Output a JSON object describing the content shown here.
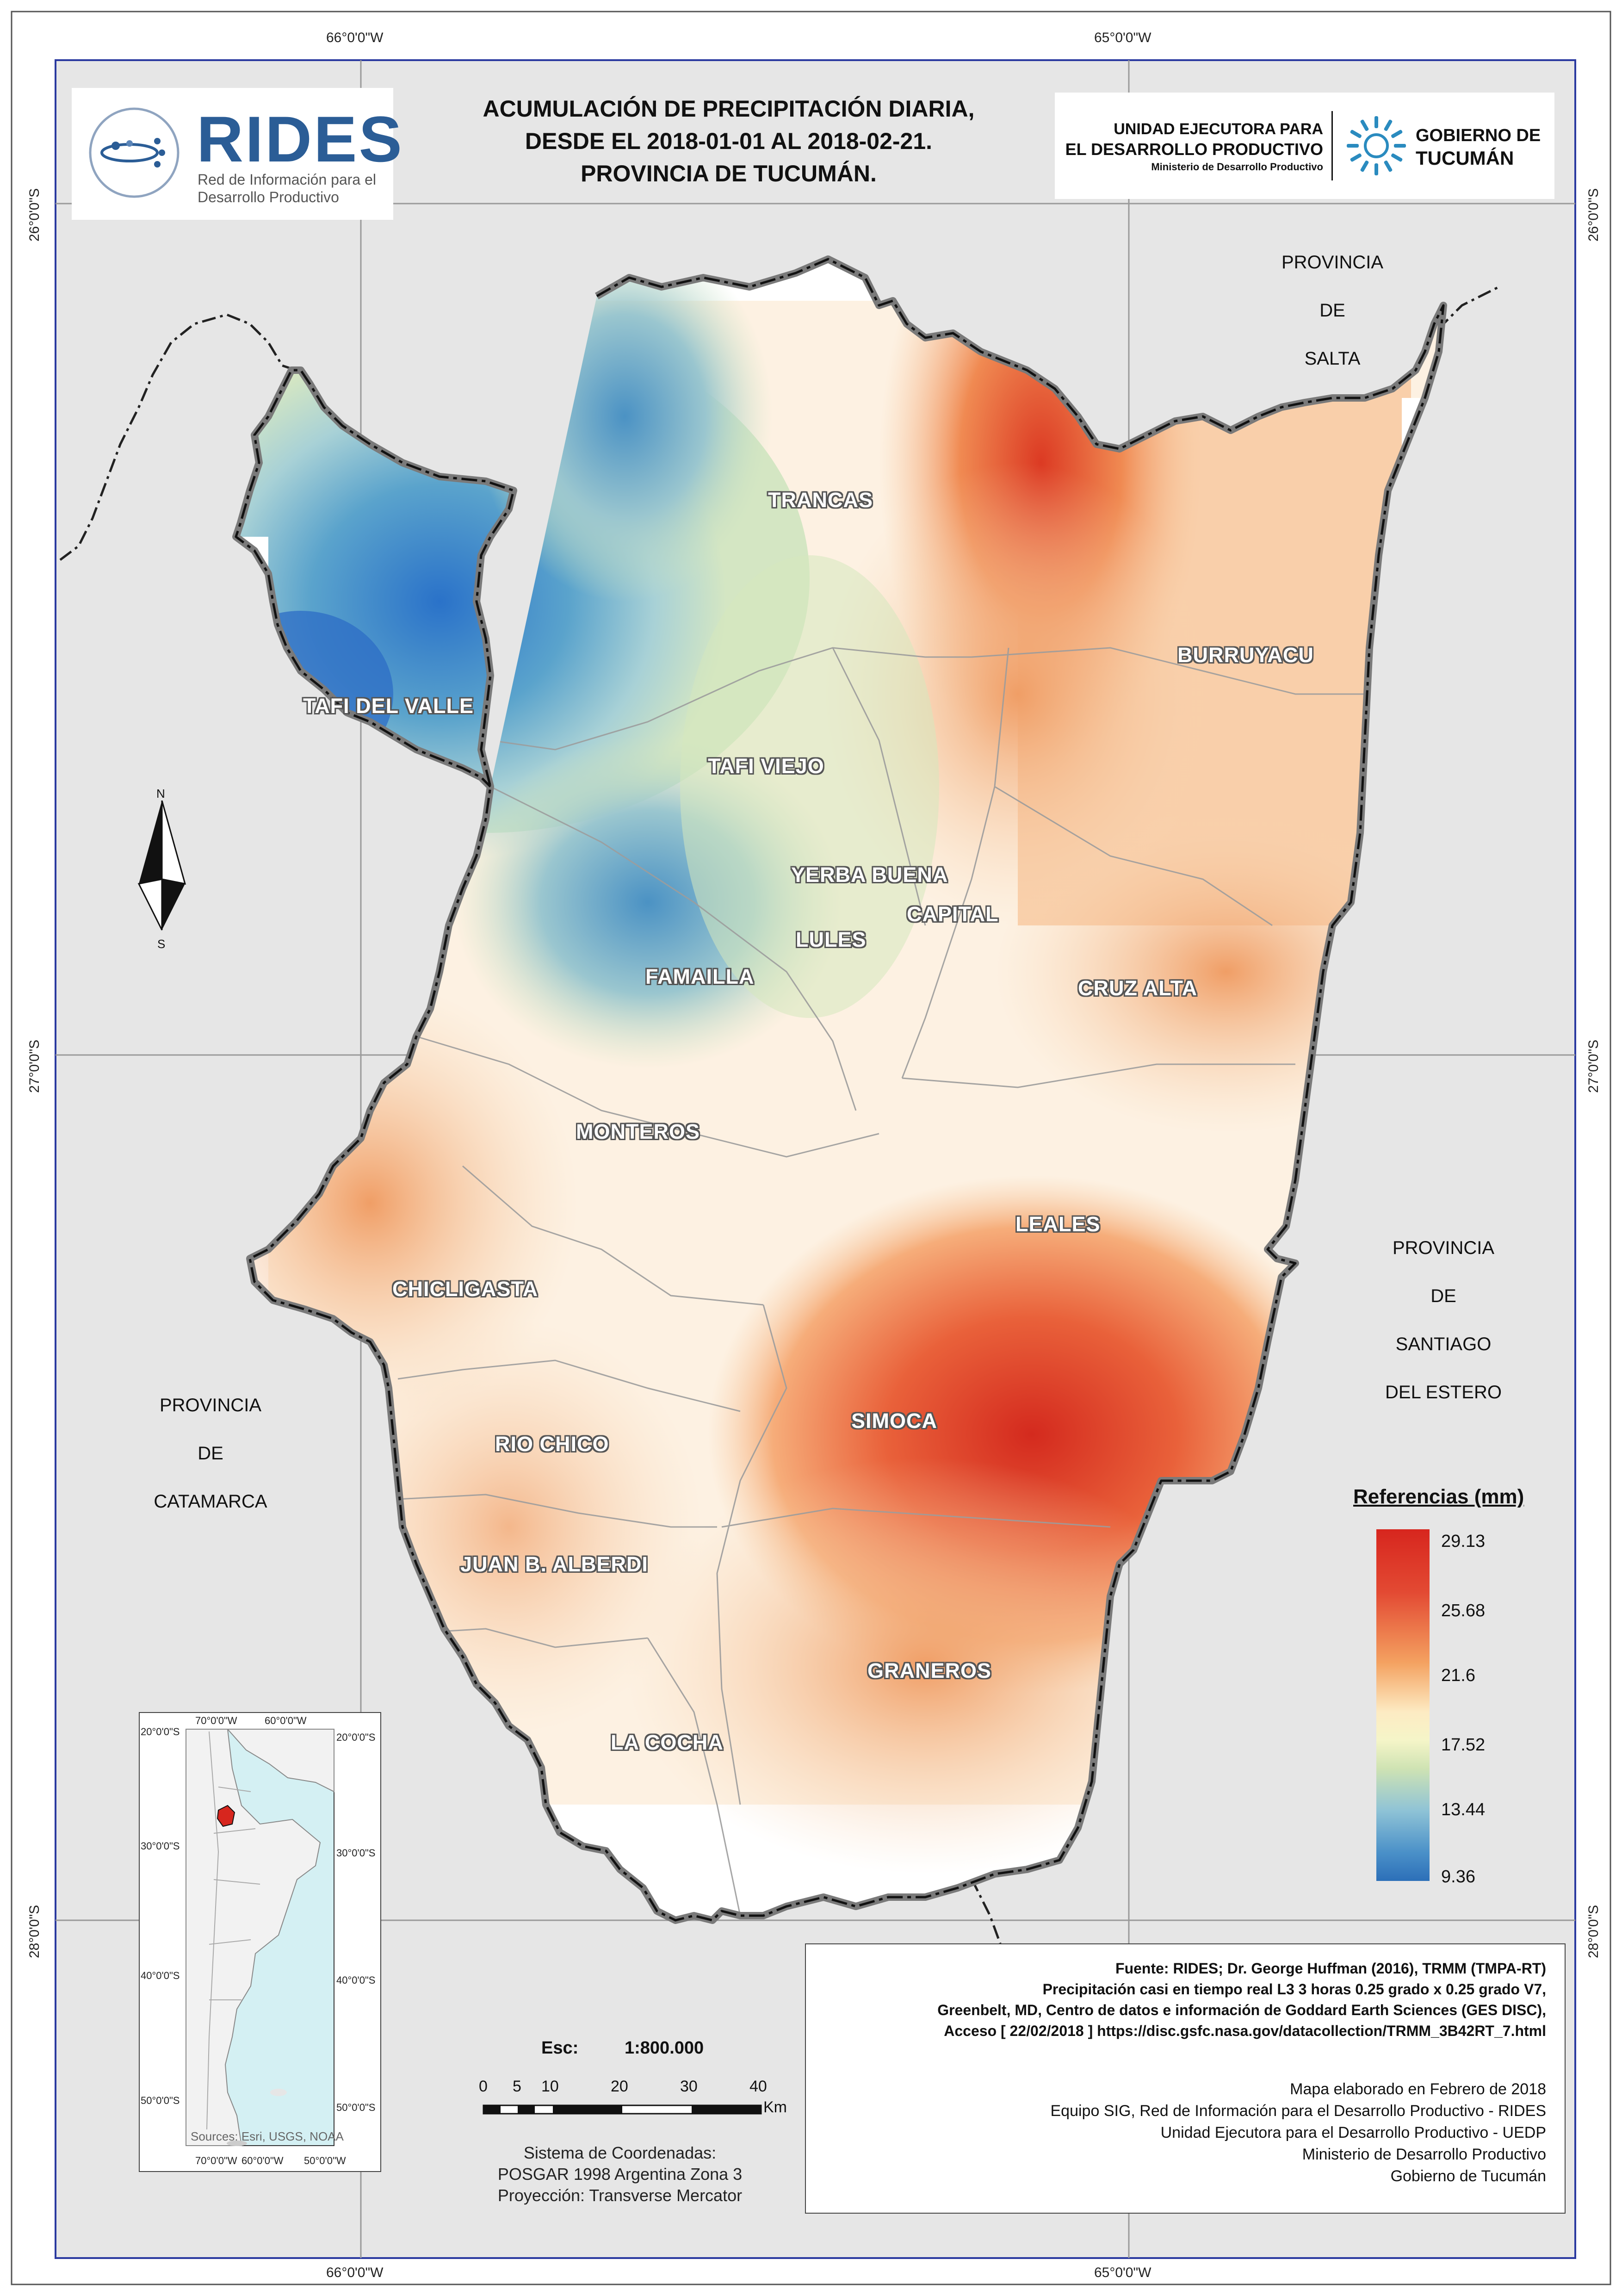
{
  "title": {
    "line1": "ACUMULACIÓN DE PRECIPITACIÓN DIARIA,",
    "line2": "DESDE EL 2018-01-01 AL 2018-02-21.",
    "line3": "PROVINCIA DE TUCUMÁN."
  },
  "logos": {
    "rides_name": "RIDES",
    "rides_sub1": "Red de Información para el",
    "rides_sub2": "Desarrollo Productivo",
    "uedp_line1": "UNIDAD EJECUTORA PARA",
    "uedp_line2": "EL DESARROLLO PRODUCTIVO",
    "uedp_line3": "Ministerio de Desarrollo Productivo",
    "gob_line1": "GOBIERNO DE",
    "gob_line2": "TUCUMÁN"
  },
  "coordinates": {
    "lon_w66": "66°0'0\"W",
    "lon_w65": "65°0'0\"W",
    "lat_s26": "26°0'0\"S",
    "lat_s27": "27°0'0\"S",
    "lat_s28": "28°0'0\"S"
  },
  "provinces": {
    "salta": [
      "PROVINCIA",
      "DE",
      "SALTA"
    ],
    "santiago": [
      "PROVINCIA",
      "DE",
      "SANTIAGO",
      "DEL ESTERO"
    ],
    "catamarca": [
      "PROVINCIA",
      "DE",
      "CATAMARCA"
    ]
  },
  "departments": {
    "trancas": "TRANCAS",
    "burruyacu": "BURRUYACU",
    "tafi_del_valle": "TAFI DEL VALLE",
    "tafi_viejo": "TAFI VIEJO",
    "yerba_buena": "YERBA BUENA",
    "capital": "CAPITAL",
    "lules": "LULES",
    "famailla": "FAMAILLA",
    "cruz_alta": "CRUZ ALTA",
    "monteros": "MONTEROS",
    "leales": "LEALES",
    "chicligasta": "CHICLIGASTA",
    "simoca": "SIMOCA",
    "rio_chico": "RIO CHICO",
    "juan_b_alberdi": "JUAN B. ALBERDI",
    "graneros": "GRANEROS",
    "la_cocha": "LA COCHA"
  },
  "north_arrow": {
    "n": "N",
    "s": "S"
  },
  "legend": {
    "title": "Referencias (mm)",
    "values": [
      "29.13",
      "25.68",
      "21.6",
      "17.52",
      "13.44",
      "9.36"
    ],
    "colors": {
      "high": "#d7261e",
      "mid": "#fdebc3",
      "low": "#2c6fb8"
    }
  },
  "scale": {
    "title": "Esc:",
    "ratio": "1:800.000",
    "labels": [
      "0",
      "5",
      "10",
      "20",
      "30",
      "40"
    ],
    "unit": "Km"
  },
  "coord_system": {
    "line1": "Sistema de Coordenadas:",
    "line2": "POSGAR 1998 Argentina Zona 3",
    "line3": "Proyección: Transverse Mercator"
  },
  "source": {
    "bold1": "Fuente: RIDES; Dr. George Huffman (2016), TRMM (TMPA-RT)",
    "bold2": "Precipitación casi en tiempo real L3 3 horas 0.25 grado x 0.25 grado V7,",
    "bold3": "Greenbelt, MD, Centro de datos e información de Goddard Earth Sciences (GES DISC),",
    "bold4": "Acceso [ 22/02/2018 ] https://disc.gsfc.nasa.gov/datacollection/TRMM_3B42RT_7.html",
    "n1": "Mapa elaborado en Febrero de 2018",
    "n2": "Equipo SIG, Red de Información para el Desarrollo Productivo - RIDES",
    "n3": "Unidad Ejecutora para el Desarrollo Productivo - UEDP",
    "n4": "Ministerio de Desarrollo Productivo",
    "n5": "Gobierno de Tucumán"
  },
  "inset": {
    "lon70": "70°0'0\"W",
    "lon60": "60°0'0\"W",
    "lon50": "50°0'0\"W",
    "lat20": "20°0'0\"S",
    "lat30": "30°0'0\"S",
    "lat40": "40°0'0\"S",
    "lat50": "50°0'0\"S",
    "credit": "Sources: Esri, USGS, NOAA"
  }
}
